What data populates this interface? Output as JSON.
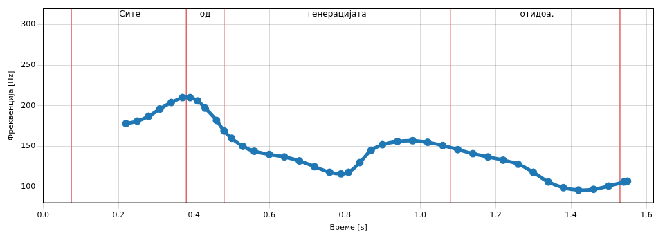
{
  "chart_data": {
    "type": "line",
    "x_label": "Време [s]",
    "y_label": "Фреквенција [Hz]",
    "x": [
      0.22,
      0.25,
      0.28,
      0.31,
      0.34,
      0.37,
      0.39,
      0.41,
      0.43,
      0.46,
      0.48,
      0.5,
      0.53,
      0.56,
      0.6,
      0.64,
      0.68,
      0.72,
      0.76,
      0.79,
      0.81,
      0.84,
      0.87,
      0.9,
      0.94,
      0.98,
      1.02,
      1.06,
      1.1,
      1.14,
      1.18,
      1.22,
      1.26,
      1.3,
      1.34,
      1.38,
      1.42,
      1.46,
      1.5,
      1.54,
      1.55
    ],
    "values": [
      178,
      181,
      187,
      196,
      204,
      210,
      210,
      206,
      197,
      182,
      169,
      160,
      150,
      144,
      140,
      137,
      132,
      125,
      118,
      116,
      118,
      130,
      145,
      152,
      156,
      157,
      155,
      151,
      146,
      141,
      137,
      133,
      128,
      118,
      106,
      99,
      96,
      97,
      101,
      106,
      107
    ],
    "color": "#1f77b4",
    "marker": "circle",
    "line_style": "solid",
    "boundaries": [
      0.075,
      0.38,
      0.48,
      1.08,
      1.53
    ],
    "boundary_color": "#e06666",
    "annotations": [
      {
        "text": "Сите",
        "x": 0.23
      },
      {
        "text": "од",
        "x": 0.43
      },
      {
        "text": "генерацијата",
        "x": 0.78
      },
      {
        "text": "отидоа.",
        "x": 1.31
      }
    ],
    "xlim": [
      0,
      1.62
    ],
    "ylim": [
      80,
      320
    ],
    "xticks": [
      {
        "value": 0,
        "label": "0.0"
      },
      {
        "value": 0.2,
        "label": "0.2"
      },
      {
        "value": 0.4,
        "label": "0.4"
      },
      {
        "value": 0.6,
        "label": "0.6"
      },
      {
        "value": 0.8,
        "label": "0.8"
      },
      {
        "value": 1.0,
        "label": "1.0"
      },
      {
        "value": 1.2,
        "label": "1.2"
      },
      {
        "value": 1.4,
        "label": "1.4"
      },
      {
        "value": 1.6,
        "label": "1.6"
      }
    ],
    "yticks": [
      100,
      150,
      200,
      250,
      300
    ],
    "grid": true
  }
}
